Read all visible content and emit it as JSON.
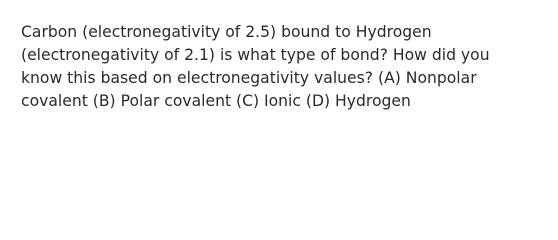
{
  "question": {
    "lines": [
      "Carbon (electronegativity of 2.5) bound to Hydrogen",
      "(electronegativity of 2.1) is what type of bond? How did you",
      "know this based on electronegativity values? (A) Nonpolar",
      "covalent (B) Polar covalent (C) Ionic (D) Hydrogen"
    ]
  }
}
